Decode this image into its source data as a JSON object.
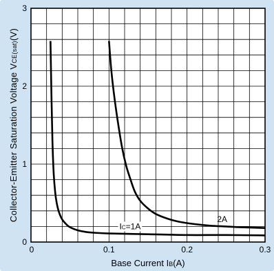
{
  "chart_data": {
    "type": "line",
    "title": "",
    "xlabel": "Base Current I B(A)",
    "xlabel_parts": {
      "pre": "Base Current I",
      "sub": "B",
      "post": "(A)"
    },
    "ylabel": "Collector-Emitter Saturation Voltage VCE(sat)(V)",
    "ylabel_parts": {
      "pre": "Collector-Emitter Saturation Voltage V",
      "sub": "CE(sat)",
      "post": "(V)"
    },
    "xlim": [
      0,
      0.3
    ],
    "ylim": [
      0,
      3
    ],
    "x_ticks": [
      0,
      0.1,
      0.2,
      0.3
    ],
    "x_tick_labels": [
      "0",
      "0.1",
      "0.2",
      "0.3"
    ],
    "y_ticks": [
      0,
      1,
      2,
      3
    ],
    "y_tick_labels": [
      "0",
      "1",
      "2",
      "3"
    ],
    "grid": true,
    "series": [
      {
        "name": "Ic=1A",
        "label_parts": {
          "pre": "I",
          "sub": "C",
          "post": "=1A"
        },
        "x": [
          0.025,
          0.0262,
          0.0275,
          0.029,
          0.031,
          0.033,
          0.036,
          0.04,
          0.045,
          0.05,
          0.06,
          0.07,
          0.08,
          0.1,
          0.15,
          0.2,
          0.25,
          0.3
        ],
        "y": [
          2.58,
          1.9,
          1.3,
          0.9,
          0.64,
          0.5,
          0.38,
          0.29,
          0.23,
          0.19,
          0.15,
          0.13,
          0.12,
          0.11,
          0.1,
          0.09,
          0.09,
          0.085
        ]
      },
      {
        "name": "2A",
        "x": [
          0.1,
          0.103,
          0.107,
          0.112,
          0.117,
          0.122,
          0.127,
          0.133,
          0.14,
          0.15,
          0.16,
          0.175,
          0.19,
          0.21,
          0.23,
          0.25,
          0.27,
          0.3
        ],
        "y": [
          2.58,
          2.2,
          1.85,
          1.5,
          1.2,
          0.98,
          0.82,
          0.65,
          0.53,
          0.43,
          0.36,
          0.3,
          0.26,
          0.23,
          0.21,
          0.2,
          0.19,
          0.18
        ]
      }
    ],
    "annotations": [
      {
        "series": "Ic=1A",
        "x": 0.127,
        "y": 0.2
      },
      {
        "series": "2A",
        "x": 0.245,
        "y": 0.29
      }
    ]
  }
}
